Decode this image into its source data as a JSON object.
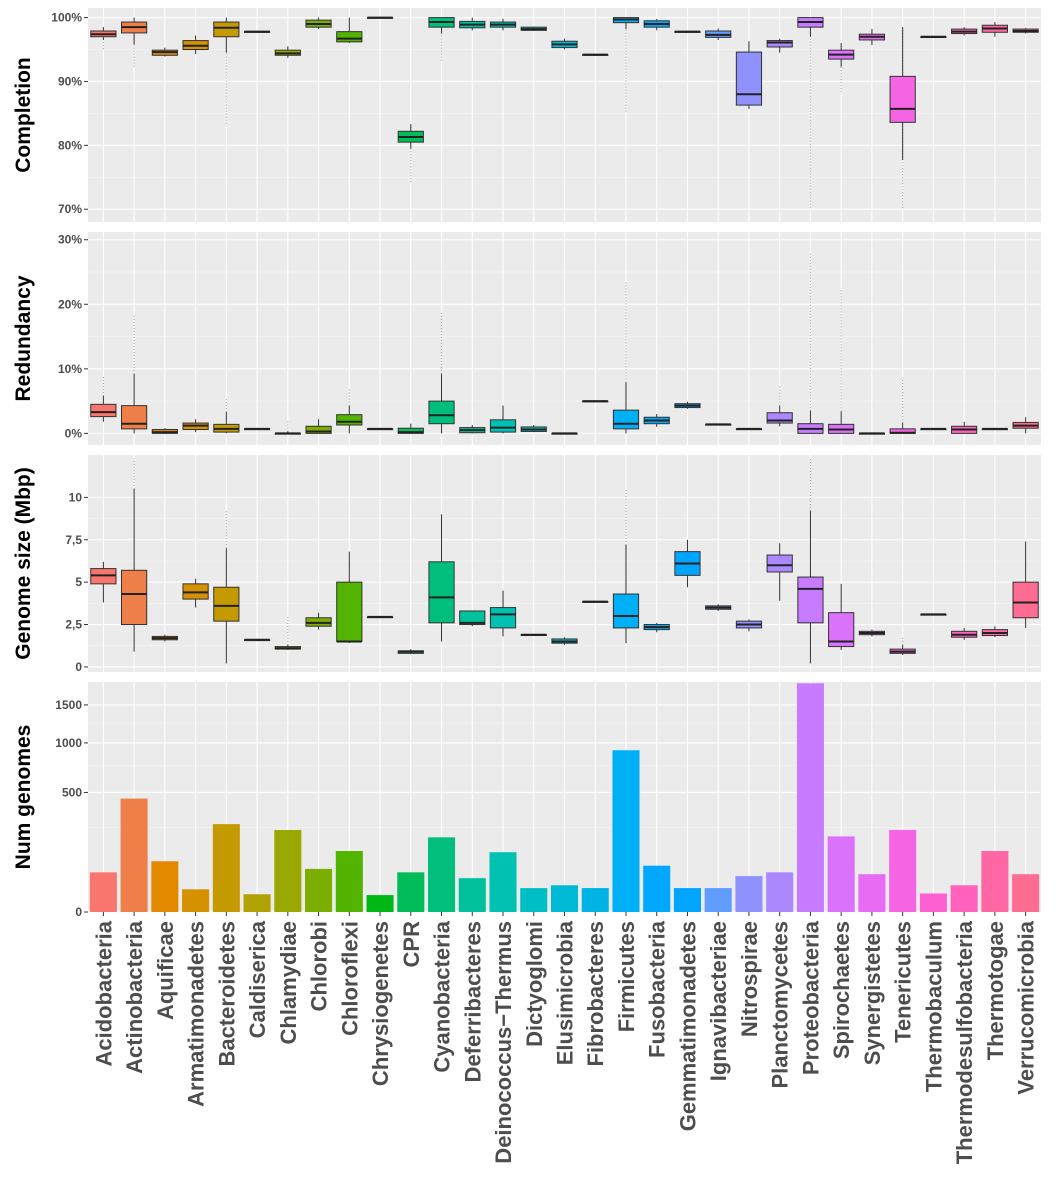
{
  "phyla": [
    "Acidobacteria",
    "Actinobacteria",
    "Aquificae",
    "Armatimonadetes",
    "Bacteroidetes",
    "Caldiserica",
    "Chlamydiae",
    "Chlorobi",
    "Chloroflexi",
    "Chrysiogenetes",
    "CPR",
    "Cyanobacteria",
    "Deferribacteres",
    "Deinococcus−Thermus",
    "Dictyoglomi",
    "Elusimicrobia",
    "Fibrobacteres",
    "Firmicutes",
    "Fusobacteria",
    "Gemmatimonadetes",
    "Ignavibacteriae",
    "Nitrospirae",
    "Planctomycetes",
    "Proteobacteria",
    "Spirochaetes",
    "Synergistetes",
    "Tenericutes",
    "Thermobaculum",
    "Thermodesulfobacteria",
    "Thermotogae",
    "Verrucomicrobia"
  ],
  "colors": [
    "#f8766d",
    "#ef7f49",
    "#e38900",
    "#d59100",
    "#c49a00",
    "#b0a200",
    "#99a800",
    "#7cae00",
    "#53b400",
    "#00b815",
    "#00bc59",
    "#00bf7d",
    "#00c19c",
    "#00c1b2",
    "#00bfc4",
    "#00bad5",
    "#00b3e4",
    "#00b0f6",
    "#00a9ff",
    "#00a5ff",
    "#619cff",
    "#8f91ff",
    "#ac88ff",
    "#c77cff",
    "#db72fb",
    "#e76bf3",
    "#f564e3",
    "#fd61d1",
    "#ff62bc",
    "#ff67a4",
    "#ff6c91"
  ],
  "highlight": {
    "name": "CPR",
    "color": "#e31a1c"
  },
  "chart_data": [
    {
      "type": "box",
      "ylabel": "Completion",
      "ylim": [
        68,
        101.5
      ],
      "yticks": [
        70,
        80,
        90,
        100
      ],
      "ytick_labels": [
        "70%",
        "80%",
        "90%",
        "100%"
      ],
      "categories_ref": "phyla",
      "boxes": [
        {
          "lo": 96.5,
          "q1": 97,
          "med": 97.4,
          "q3": 97.9,
          "hi": 98.5,
          "out": 95
        },
        {
          "lo": 95.8,
          "q1": 97.6,
          "med": 98.5,
          "q3": 99.3,
          "hi": 100,
          "out": 92
        },
        {
          "lo": 93.9,
          "q1": 94.1,
          "med": 94.6,
          "q3": 94.9,
          "hi": 95.3
        },
        {
          "lo": 94.3,
          "q1": 95,
          "med": 95.6,
          "q3": 96.4,
          "hi": 97.2
        },
        {
          "lo": 94.5,
          "q1": 97,
          "med": 98.4,
          "q3": 99.3,
          "hi": 100,
          "out": 83
        },
        {
          "lo": 97.8,
          "q1": 97.8,
          "med": 97.8,
          "q3": 97.8,
          "hi": 97.8
        },
        {
          "lo": 93.7,
          "q1": 94.1,
          "med": 94.4,
          "q3": 94.9,
          "hi": 95.5
        },
        {
          "lo": 98.2,
          "q1": 98.5,
          "med": 99,
          "q3": 99.6,
          "hi": 100
        },
        {
          "lo": 96,
          "q1": 96.2,
          "med": 96.7,
          "q3": 97.8,
          "hi": 100
        },
        {
          "lo": 100,
          "q1": 100,
          "med": 100,
          "q3": 100,
          "hi": 100
        },
        {
          "lo": 79.5,
          "q1": 80.5,
          "med": 81.3,
          "q3": 82.2,
          "hi": 83.3,
          "out": 74
        },
        {
          "lo": 97.5,
          "q1": 98.5,
          "med": 99.3,
          "q3": 100,
          "hi": 100,
          "out": 93
        },
        {
          "lo": 98,
          "q1": 98.4,
          "med": 98.9,
          "q3": 99.4,
          "hi": 100
        },
        {
          "lo": 98,
          "q1": 98.5,
          "med": 98.9,
          "q3": 99.3,
          "hi": 99.8
        },
        {
          "lo": 97.9,
          "q1": 98,
          "med": 98.2,
          "q3": 98.5,
          "hi": 98.6
        },
        {
          "lo": 95,
          "q1": 95.3,
          "med": 95.8,
          "q3": 96.3,
          "hi": 96.7
        },
        {
          "lo": 94.2,
          "q1": 94.2,
          "med": 94.2,
          "q3": 94.2,
          "hi": 94.2
        },
        {
          "lo": 98.2,
          "q1": 99.2,
          "med": 99.7,
          "q3": 100,
          "hi": 100,
          "out": 85
        },
        {
          "lo": 98,
          "q1": 98.5,
          "med": 99,
          "q3": 99.5,
          "hi": 99.8
        },
        {
          "lo": 97.8,
          "q1": 97.8,
          "med": 97.8,
          "q3": 97.8,
          "hi": 97.8
        },
        {
          "lo": 96.5,
          "q1": 96.9,
          "med": 97.3,
          "q3": 97.9,
          "hi": 98.3
        },
        {
          "lo": 85.7,
          "q1": 86.3,
          "med": 88,
          "q3": 94.6,
          "hi": 96.3
        },
        {
          "lo": 94.5,
          "q1": 95.4,
          "med": 96.1,
          "q3": 96.4,
          "hi": 96.7
        },
        {
          "lo": 97,
          "q1": 98.5,
          "med": 99.3,
          "q3": 100,
          "hi": 100,
          "out": 70
        },
        {
          "lo": 92.3,
          "q1": 93.5,
          "med": 94.2,
          "q3": 94.9,
          "hi": 96,
          "out": 88
        },
        {
          "lo": 95.7,
          "q1": 96.5,
          "med": 97,
          "q3": 97.4,
          "hi": 98.2
        },
        {
          "lo": 77.7,
          "q1": 83.6,
          "med": 85.7,
          "q3": 90.8,
          "hi": 98.5,
          "out": 70
        },
        {
          "lo": 97,
          "q1": 97,
          "med": 97,
          "q3": 97,
          "hi": 97
        },
        {
          "lo": 97.2,
          "q1": 97.5,
          "med": 97.8,
          "q3": 98.2,
          "hi": 98.5
        },
        {
          "lo": 97,
          "q1": 97.7,
          "med": 98.3,
          "q3": 98.8,
          "hi": 99.3
        },
        {
          "lo": 97.5,
          "q1": 97.7,
          "med": 97.9,
          "q3": 98.2,
          "hi": 98.4
        }
      ]
    },
    {
      "type": "box",
      "ylabel": "Redundancy",
      "ylim": [
        -1.8,
        31.2
      ],
      "yticks": [
        0,
        10,
        20,
        30
      ],
      "ytick_labels": [
        "0%",
        "10%",
        "20%",
        "30%"
      ],
      "categories_ref": "phyla",
      "boxes": [
        {
          "lo": 1.8,
          "q1": 2.6,
          "med": 3.3,
          "q3": 4.5,
          "hi": 5.8,
          "out": 9
        },
        {
          "lo": 0,
          "q1": 0.7,
          "med": 1.5,
          "q3": 4.3,
          "hi": 9.2,
          "out": 18.5
        },
        {
          "lo": 0,
          "q1": 0,
          "med": 0.2,
          "q3": 0.6,
          "hi": 0.8
        },
        {
          "lo": 0.2,
          "q1": 0.6,
          "med": 1.2,
          "q3": 1.6,
          "hi": 2.2
        },
        {
          "lo": 0,
          "q1": 0.2,
          "med": 0.7,
          "q3": 1.4,
          "hi": 3.3,
          "out": 5.5
        },
        {
          "lo": 0.7,
          "q1": 0.7,
          "med": 0.7,
          "q3": 0.7,
          "hi": 0.7
        },
        {
          "lo": 0,
          "q1": 0,
          "med": 0,
          "q3": 0,
          "hi": 0.3,
          "out": 2
        },
        {
          "lo": 0,
          "q1": 0,
          "med": 0.3,
          "q3": 1.1,
          "hi": 2.2
        },
        {
          "lo": 0,
          "q1": 1.3,
          "med": 1.8,
          "q3": 2.9,
          "hi": 4.3,
          "out": 7
        },
        {
          "lo": 0.7,
          "q1": 0.7,
          "med": 0.7,
          "q3": 0.7,
          "hi": 0.7
        },
        {
          "lo": 0,
          "q1": 0,
          "med": 0.2,
          "q3": 0.8,
          "hi": 1.5
        },
        {
          "lo": 0,
          "q1": 1.5,
          "med": 2.8,
          "q3": 5,
          "hi": 9.2,
          "out": 19
        },
        {
          "lo": 0,
          "q1": 0.1,
          "med": 0.5,
          "q3": 0.9,
          "hi": 1.3
        },
        {
          "lo": 0,
          "q1": 0.2,
          "med": 0.9,
          "q3": 2.1,
          "hi": 4.3
        },
        {
          "lo": 0.2,
          "q1": 0.3,
          "med": 0.6,
          "q3": 1,
          "hi": 1.3
        },
        {
          "lo": 0,
          "q1": 0,
          "med": 0,
          "q3": 0,
          "hi": 0
        },
        {
          "lo": 5,
          "q1": 5,
          "med": 5,
          "q3": 5,
          "hi": 5
        },
        {
          "lo": 0,
          "q1": 0.7,
          "med": 1.5,
          "q3": 3.6,
          "hi": 7.9,
          "out": 23.5
        },
        {
          "lo": 1,
          "q1": 1.5,
          "med": 2,
          "q3": 2.5,
          "hi": 3
        },
        {
          "lo": 3.8,
          "q1": 4,
          "med": 4.3,
          "q3": 4.6,
          "hi": 4.9
        },
        {
          "lo": 1.4,
          "q1": 1.4,
          "med": 1.4,
          "q3": 1.4,
          "hi": 1.4
        },
        {
          "lo": 0.7,
          "q1": 0.7,
          "med": 0.7,
          "q3": 0.7,
          "hi": 0.7
        },
        {
          "lo": 1.1,
          "q1": 1.6,
          "med": 2,
          "q3": 3.2,
          "hi": 4.3,
          "out": 7.5
        },
        {
          "lo": 0,
          "q1": 0,
          "med": 0.7,
          "q3": 1.5,
          "hi": 3.5,
          "out": 28
        },
        {
          "lo": 0,
          "q1": 0,
          "med": 0.6,
          "q3": 1.4,
          "hi": 3.4,
          "out": 22.5
        },
        {
          "lo": 0,
          "q1": 0,
          "med": 0,
          "q3": 0,
          "hi": 0
        },
        {
          "lo": 0,
          "q1": 0,
          "med": 0.1,
          "q3": 0.7,
          "hi": 1.6,
          "out": 8.5
        },
        {
          "lo": 0.7,
          "q1": 0.7,
          "med": 0.7,
          "q3": 0.7,
          "hi": 0.7
        },
        {
          "lo": 0,
          "q1": 0,
          "med": 0.6,
          "q3": 1.1,
          "hi": 1.8
        },
        {
          "lo": 0.7,
          "q1": 0.7,
          "med": 0.7,
          "q3": 0.7,
          "hi": 0.7
        },
        {
          "lo": 0,
          "q1": 0.8,
          "med": 1.2,
          "q3": 1.7,
          "hi": 2.5
        }
      ]
    },
    {
      "type": "box",
      "ylabel": "Genome size (Mbp)",
      "ylim": [
        -0.3,
        12.5
      ],
      "yticks": [
        0,
        2.5,
        5,
        7.5,
        10
      ],
      "ytick_labels": [
        "0",
        "2,5",
        "5",
        "7,5",
        "10"
      ],
      "categories_ref": "phyla",
      "boxes": [
        {
          "lo": 3.8,
          "q1": 4.9,
          "med": 5.4,
          "q3": 5.8,
          "hi": 6.2
        },
        {
          "lo": 0.9,
          "q1": 2.5,
          "med": 4.3,
          "q3": 5.7,
          "hi": 10.5,
          "out": 12.3
        },
        {
          "lo": 1.5,
          "q1": 1.6,
          "med": 1.7,
          "q3": 1.8,
          "hi": 1.9
        },
        {
          "lo": 3.5,
          "q1": 4,
          "med": 4.4,
          "q3": 4.9,
          "hi": 5.2
        },
        {
          "lo": 0.2,
          "q1": 2.7,
          "med": 3.6,
          "q3": 4.7,
          "hi": 7,
          "out": 9.3
        },
        {
          "lo": 1.6,
          "q1": 1.6,
          "med": 1.6,
          "q3": 1.6,
          "hi": 1.6
        },
        {
          "lo": 1,
          "q1": 1.05,
          "med": 1.1,
          "q3": 1.2,
          "hi": 1.3,
          "out": 3
        },
        {
          "lo": 2.2,
          "q1": 2.4,
          "med": 2.6,
          "q3": 2.9,
          "hi": 3.2
        },
        {
          "lo": 1.4,
          "q1": 1.5,
          "med": 1.5,
          "q3": 5,
          "hi": 6.8
        },
        {
          "lo": 2.95,
          "q1": 2.95,
          "med": 2.95,
          "q3": 2.95,
          "hi": 2.95
        },
        {
          "lo": 0.75,
          "q1": 0.8,
          "med": 0.9,
          "q3": 0.95,
          "hi": 1.05
        },
        {
          "lo": 1.5,
          "q1": 2.6,
          "med": 4.1,
          "q3": 6.2,
          "hi": 9
        },
        {
          "lo": 2.4,
          "q1": 2.5,
          "med": 2.6,
          "q3": 3.3,
          "hi": 3.3
        },
        {
          "lo": 1.8,
          "q1": 2.3,
          "med": 3.1,
          "q3": 3.5,
          "hi": 4.5
        },
        {
          "lo": 1.9,
          "q1": 1.9,
          "med": 1.9,
          "q3": 1.9,
          "hi": 1.9
        },
        {
          "lo": 1.3,
          "q1": 1.4,
          "med": 1.5,
          "q3": 1.65,
          "hi": 1.75
        },
        {
          "lo": 3.85,
          "q1": 3.85,
          "med": 3.85,
          "q3": 3.85,
          "hi": 3.85
        },
        {
          "lo": 1.4,
          "q1": 2.3,
          "med": 3,
          "q3": 4.3,
          "hi": 7.2,
          "out": 10.5
        },
        {
          "lo": 2.05,
          "q1": 2.2,
          "med": 2.35,
          "q3": 2.5,
          "hi": 2.6
        },
        {
          "lo": 4.7,
          "q1": 5.4,
          "med": 6.1,
          "q3": 6.8,
          "hi": 7.5
        },
        {
          "lo": 3.3,
          "q1": 3.4,
          "med": 3.5,
          "q3": 3.6,
          "hi": 3.7
        },
        {
          "lo": 2.1,
          "q1": 2.3,
          "med": 2.5,
          "q3": 2.7,
          "hi": 2.8
        },
        {
          "lo": 3.9,
          "q1": 5.6,
          "med": 6,
          "q3": 6.6,
          "hi": 7.3
        },
        {
          "lo": 0.2,
          "q1": 2.6,
          "med": 4.6,
          "q3": 5.3,
          "hi": 9.2,
          "out": 12.3
        },
        {
          "lo": 1,
          "q1": 1.2,
          "med": 1.5,
          "q3": 3.2,
          "hi": 4.9
        },
        {
          "lo": 1.8,
          "q1": 1.9,
          "med": 2,
          "q3": 2.1,
          "hi": 2.2
        },
        {
          "lo": 0.7,
          "q1": 0.8,
          "med": 0.9,
          "q3": 1.05,
          "hi": 1.3,
          "out": 1.8
        },
        {
          "lo": 3.1,
          "q1": 3.1,
          "med": 3.1,
          "q3": 3.1,
          "hi": 3.1
        },
        {
          "lo": 1.6,
          "q1": 1.75,
          "med": 1.9,
          "q3": 2.1,
          "hi": 2.3
        },
        {
          "lo": 1.75,
          "q1": 1.85,
          "med": 2,
          "q3": 2.2,
          "hi": 2.4
        },
        {
          "lo": 2.3,
          "q1": 2.9,
          "med": 3.8,
          "q3": 5,
          "hi": 7.4
        }
      ]
    },
    {
      "type": "bar",
      "ylabel": "Num genomes",
      "scale": "sqrt",
      "ylim": [
        0,
        1850
      ],
      "yticks": [
        0,
        500,
        1000,
        1500
      ],
      "ytick_labels": [
        "0",
        "500",
        "1000",
        "1500"
      ],
      "categories_ref": "phyla",
      "values": [
        55,
        450,
        90,
        18,
        270,
        11,
        235,
        65,
        130,
        10,
        55,
        195,
        40,
        125,
        20,
        25,
        20,
        915,
        75,
        20,
        20,
        45,
        55,
        1830,
        200,
        50,
        235,
        12,
        25,
        130,
        50
      ]
    }
  ]
}
